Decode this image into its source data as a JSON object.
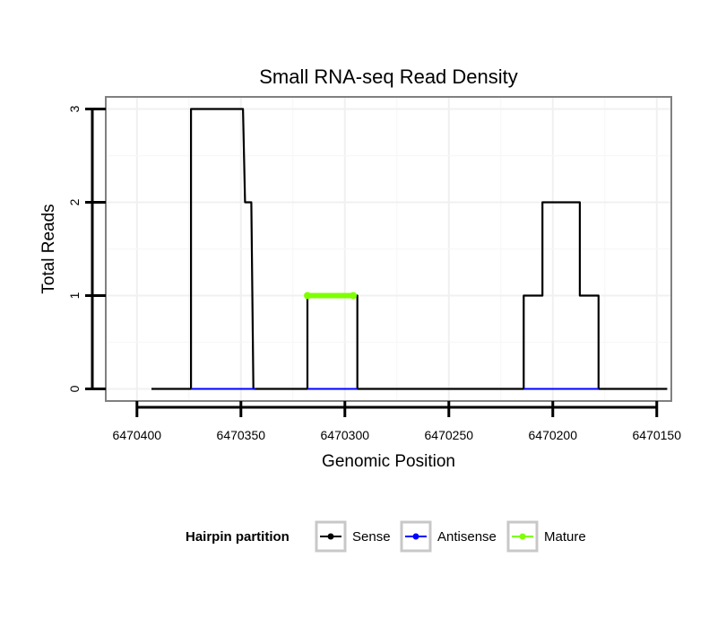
{
  "chart_data": {
    "type": "line",
    "title": "Small RNA-seq Read Density",
    "xlabel": "Genomic Position",
    "ylabel": "Total Reads",
    "x_reversed": true,
    "xlim": [
      6470415,
      6470143
    ],
    "ylim": [
      -0.13,
      3.13
    ],
    "x_ticks": [
      6470400,
      6470350,
      6470300,
      6470250,
      6470200,
      6470150
    ],
    "x_tick_labels": [
      "6470400",
      "6470350",
      "6470300",
      "6470250",
      "6470200",
      "6470150"
    ],
    "y_ticks": [
      0,
      1,
      2,
      3
    ],
    "y_tick_labels": [
      "0",
      "1",
      "2",
      "3"
    ],
    "grid": true,
    "legend": {
      "title": "Hairpin partition",
      "position": "bottom",
      "entries": [
        {
          "label": "Sense",
          "color": "#000000"
        },
        {
          "label": "Antisense",
          "color": "#0000ff"
        },
        {
          "label": "Mature",
          "color": "#7fff00"
        }
      ]
    },
    "series": [
      {
        "name": "Sense",
        "color": "#000000",
        "x": [
          6470393,
          6470374,
          6470374,
          6470349,
          6470348,
          6470346,
          6470345,
          6470344,
          6470343,
          6470318,
          6470318,
          6470294,
          6470294,
          6470214,
          6470214,
          6470205,
          6470205,
          6470187,
          6470187,
          6470178,
          6470178,
          6470145
        ],
        "y": [
          0,
          0,
          3,
          3,
          2,
          2,
          2,
          0,
          0,
          0,
          1,
          1,
          0,
          0,
          1,
          1,
          2,
          2,
          1,
          1,
          0,
          0
        ]
      },
      {
        "name": "Antisense",
        "color": "#0000ff",
        "x": [
          6470374,
          6470343,
          6470318,
          6470294,
          6470214,
          6470178
        ],
        "y": [
          0,
          0,
          0,
          0,
          0,
          0
        ],
        "segments": [
          [
            0,
            1
          ],
          [
            2,
            3
          ],
          [
            4,
            5
          ]
        ]
      },
      {
        "name": "Mature",
        "color": "#7fff00",
        "x": [
          6470318,
          6470296
        ],
        "y": [
          1,
          1
        ]
      }
    ]
  }
}
